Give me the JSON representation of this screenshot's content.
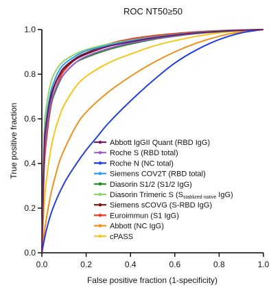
{
  "chart_data": {
    "type": "line",
    "title": "ROC NT50≥50",
    "xlabel": "False positive fraction (1-specificity)",
    "ylabel": "True positive fraction",
    "xlim": [
      0,
      1
    ],
    "ylim": [
      0,
      1
    ],
    "x_ticks": [
      "0.0",
      "0.2",
      "0.4",
      "0.6",
      "0.8",
      "1.0"
    ],
    "y_ticks": [
      "0.0",
      "0.2",
      "0.4",
      "0.6",
      "0.8",
      "1.0"
    ],
    "grid": false,
    "legend_position": "center-right",
    "series": [
      {
        "name": "Abbott IgGII Quant (RBD IgG)",
        "color": "#6b1f5e",
        "x": [
          0,
          0.01,
          0.02,
          0.04,
          0.06,
          0.08,
          0.1,
          0.15,
          0.2,
          0.3,
          0.4,
          0.5,
          0.6,
          0.7,
          0.8,
          0.9,
          1.0
        ],
        "y": [
          0,
          0.45,
          0.58,
          0.7,
          0.76,
          0.8,
          0.83,
          0.87,
          0.895,
          0.925,
          0.945,
          0.962,
          0.975,
          0.985,
          0.992,
          0.997,
          1.0
        ]
      },
      {
        "name": "Roche S (RBD total)",
        "color": "#a05ad8",
        "x": [
          0,
          0.01,
          0.02,
          0.04,
          0.06,
          0.08,
          0.1,
          0.15,
          0.2,
          0.3,
          0.4,
          0.5,
          0.6,
          0.7,
          0.8,
          0.9,
          1.0
        ],
        "y": [
          0,
          0.4,
          0.54,
          0.67,
          0.73,
          0.77,
          0.8,
          0.85,
          0.88,
          0.915,
          0.94,
          0.958,
          0.972,
          0.983,
          0.991,
          0.996,
          1.0
        ]
      },
      {
        "name": "Roche N (NC total)",
        "color": "#1f3fe0",
        "x": [
          0,
          0.02,
          0.05,
          0.1,
          0.15,
          0.2,
          0.25,
          0.3,
          0.4,
          0.5,
          0.6,
          0.7,
          0.8,
          0.9,
          1.0
        ],
        "y": [
          0,
          0.1,
          0.2,
          0.31,
          0.39,
          0.46,
          0.52,
          0.58,
          0.68,
          0.77,
          0.85,
          0.91,
          0.955,
          0.985,
          1.0
        ]
      },
      {
        "name": "Siemens COV2T (RBD total)",
        "color": "#2aa0e8",
        "x": [
          0,
          0.01,
          0.02,
          0.04,
          0.06,
          0.08,
          0.1,
          0.15,
          0.2,
          0.3,
          0.4,
          0.5,
          0.6,
          0.7,
          0.8,
          0.9,
          1.0
        ],
        "y": [
          0,
          0.46,
          0.6,
          0.72,
          0.78,
          0.82,
          0.845,
          0.88,
          0.905,
          0.93,
          0.95,
          0.965,
          0.977,
          0.987,
          0.993,
          0.997,
          1.0
        ]
      },
      {
        "name": "Diasorin S1/2 (S1/2 IgG)",
        "color": "#1e8a1e",
        "x": [
          0,
          0.01,
          0.02,
          0.04,
          0.06,
          0.08,
          0.1,
          0.15,
          0.2,
          0.3,
          0.4,
          0.5,
          0.6,
          0.7,
          0.8,
          0.9,
          1.0
        ],
        "y": [
          0,
          0.4,
          0.53,
          0.66,
          0.72,
          0.765,
          0.8,
          0.85,
          0.875,
          0.91,
          0.935,
          0.955,
          0.97,
          0.982,
          0.99,
          0.996,
          1.0
        ]
      },
      {
        "name": "Diasorin Trimeric S (Sstablized native IgG)",
        "color": "#8fd46a",
        "x": [
          0,
          0.01,
          0.02,
          0.04,
          0.06,
          0.08,
          0.1,
          0.15,
          0.2,
          0.3,
          0.4,
          0.5,
          0.6,
          0.7,
          0.8,
          0.9,
          1.0
        ],
        "y": [
          0,
          0.52,
          0.65,
          0.76,
          0.81,
          0.84,
          0.86,
          0.89,
          0.91,
          0.935,
          0.952,
          0.966,
          0.978,
          0.987,
          0.993,
          0.997,
          1.0
        ]
      },
      {
        "name": "Siemens sCOVG (S-RBD IgG)",
        "color": "#7a1010",
        "x": [
          0,
          0.01,
          0.02,
          0.04,
          0.06,
          0.08,
          0.1,
          0.15,
          0.2,
          0.3,
          0.4,
          0.5,
          0.6,
          0.7,
          0.8,
          0.9,
          1.0
        ],
        "y": [
          0,
          0.44,
          0.57,
          0.69,
          0.755,
          0.795,
          0.825,
          0.865,
          0.89,
          0.925,
          0.947,
          0.963,
          0.976,
          0.986,
          0.992,
          0.997,
          1.0
        ]
      },
      {
        "name": "Euroimmun (S1 IgG)",
        "color": "#e83a1a",
        "x": [
          0,
          0.01,
          0.02,
          0.04,
          0.06,
          0.08,
          0.1,
          0.15,
          0.2,
          0.3,
          0.4,
          0.5,
          0.6,
          0.7,
          0.8,
          0.9,
          1.0
        ],
        "y": [
          0,
          0.36,
          0.5,
          0.65,
          0.73,
          0.78,
          0.815,
          0.865,
          0.895,
          0.935,
          0.958,
          0.972,
          0.982,
          0.99,
          0.995,
          0.998,
          1.0
        ]
      },
      {
        "name": "Abbott (NC IgG)",
        "color": "#f0901a",
        "x": [
          0,
          0.01,
          0.02,
          0.04,
          0.06,
          0.08,
          0.1,
          0.15,
          0.2,
          0.3,
          0.4,
          0.5,
          0.6,
          0.7,
          0.8,
          0.9,
          1.0
        ],
        "y": [
          0,
          0.08,
          0.15,
          0.26,
          0.34,
          0.41,
          0.46,
          0.56,
          0.63,
          0.72,
          0.79,
          0.85,
          0.9,
          0.94,
          0.97,
          0.99,
          1.0
        ]
      },
      {
        "name": "cPASS",
        "color": "#f5c518",
        "x": [
          0,
          0.01,
          0.02,
          0.04,
          0.06,
          0.08,
          0.1,
          0.15,
          0.2,
          0.3,
          0.4,
          0.5,
          0.6,
          0.7,
          0.8,
          0.9,
          1.0
        ],
        "y": [
          0,
          0.2,
          0.32,
          0.46,
          0.55,
          0.61,
          0.66,
          0.74,
          0.79,
          0.85,
          0.89,
          0.925,
          0.95,
          0.97,
          0.985,
          0.995,
          1.0
        ]
      }
    ]
  }
}
